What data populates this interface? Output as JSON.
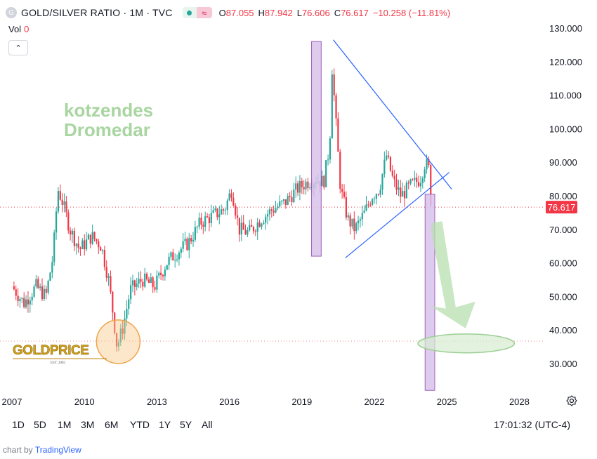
{
  "header": {
    "symbol_logo": "G",
    "title": "GOLD/SILVER RATIO · 1M · TVC",
    "status_icon": "market-status-dot",
    "status_wave": "≈",
    "ohlc": [
      {
        "k": "O",
        "v": "87.055"
      },
      {
        "k": "H",
        "v": "87.942"
      },
      {
        "k": "L",
        "v": "76.606"
      },
      {
        "k": "C",
        "v": "76.617"
      },
      {
        "k": "",
        "v": "−10.258 (−11.81%)"
      }
    ]
  },
  "volume": {
    "label": "Vol",
    "value": "0"
  },
  "collapse_label": "⌃",
  "annotations": {
    "text_line1": "kotzendes",
    "text_line2": "Dromedar",
    "logo_text": "GOLDPRICE",
    "logo_sub": "EST. 2002"
  },
  "ranges": [
    "1D",
    "5D",
    "1M",
    "3M",
    "6M",
    "YTD",
    "1Y",
    "5Y",
    "All"
  ],
  "clock": "17:01:32 (UTC-4)",
  "credit": {
    "prefix": "chart by ",
    "brand": "TradingView"
  },
  "colors": {
    "up": "#26a69a",
    "down": "#f23645",
    "triangle": "#2962ff",
    "highlight": "#d9c3ec",
    "arrow": "#b8dfb0"
  },
  "chart_data": {
    "type": "candlestick",
    "title": "GOLD/SILVER RATIO · 1M · TVC",
    "interval": "1M",
    "last_price": "76.617",
    "y_ticks": [
      "130.000",
      "120.000",
      "110.000",
      "100.000",
      "90.000",
      "80.000",
      "70.000",
      "60.000",
      "50.000",
      "40.000",
      "30.000"
    ],
    "x_ticks": [
      "2007",
      "2010",
      "2013",
      "2016",
      "2019",
      "2022",
      "2025",
      "2028"
    ],
    "ylim": [
      22,
      132
    ],
    "xlim": [
      2007.0,
      2029.5
    ],
    "close_path": [
      [
        2007.0,
        53
      ],
      [
        2007.5,
        48
      ],
      [
        2008.0,
        53
      ],
      [
        2008.4,
        50
      ],
      [
        2008.7,
        62
      ],
      [
        2008.9,
        82
      ],
      [
        2009.1,
        78
      ],
      [
        2009.4,
        70
      ],
      [
        2009.8,
        64
      ],
      [
        2010.3,
        68
      ],
      [
        2010.7,
        65
      ],
      [
        2011.0,
        55
      ],
      [
        2011.2,
        44
      ],
      [
        2011.35,
        35
      ],
      [
        2011.6,
        41
      ],
      [
        2011.9,
        52
      ],
      [
        2012.4,
        55
      ],
      [
        2012.9,
        53
      ],
      [
        2013.4,
        60
      ],
      [
        2013.8,
        63
      ],
      [
        2014.3,
        66
      ],
      [
        2014.8,
        72
      ],
      [
        2015.3,
        74
      ],
      [
        2015.8,
        76
      ],
      [
        2016.1,
        82
      ],
      [
        2016.4,
        70
      ],
      [
        2016.8,
        69
      ],
      [
        2017.3,
        73
      ],
      [
        2017.8,
        76
      ],
      [
        2018.3,
        78
      ],
      [
        2018.8,
        82
      ],
      [
        2019.2,
        84
      ],
      [
        2019.6,
        85
      ],
      [
        2019.9,
        84
      ],
      [
        2020.15,
        95
      ],
      [
        2020.25,
        118
      ],
      [
        2020.35,
        108
      ],
      [
        2020.6,
        82
      ],
      [
        2020.9,
        73
      ],
      [
        2021.2,
        70
      ],
      [
        2021.6,
        75
      ],
      [
        2021.9,
        80
      ],
      [
        2022.2,
        82
      ],
      [
        2022.5,
        92
      ],
      [
        2022.8,
        84
      ],
      [
        2023.1,
        80
      ],
      [
        2023.5,
        83
      ],
      [
        2023.9,
        85
      ],
      [
        2024.1,
        90
      ],
      [
        2024.25,
        88
      ],
      [
        2024.35,
        77
      ]
    ],
    "triangle": {
      "upper": [
        [
          2020.3,
          126.5
        ],
        [
          2025.2,
          82
        ]
      ],
      "lower": [
        [
          2020.8,
          61.5
        ],
        [
          2025.1,
          87
        ]
      ]
    },
    "highlight_bars": [
      {
        "from": 2019.4,
        "to": 2019.8,
        "top": 126,
        "bottom": 62
      },
      {
        "from": 2024.1,
        "to": 2024.5,
        "top": 80.5,
        "bottom": 22
      }
    ],
    "price_line": 76.617,
    "support_line": 36.7,
    "target_zone": {
      "x_center": 2025.8,
      "y_center": 36,
      "x_half": 0.95,
      "y_half": 2.8
    },
    "circle_marker": {
      "x": 2011.4,
      "y": 36.5
    }
  }
}
